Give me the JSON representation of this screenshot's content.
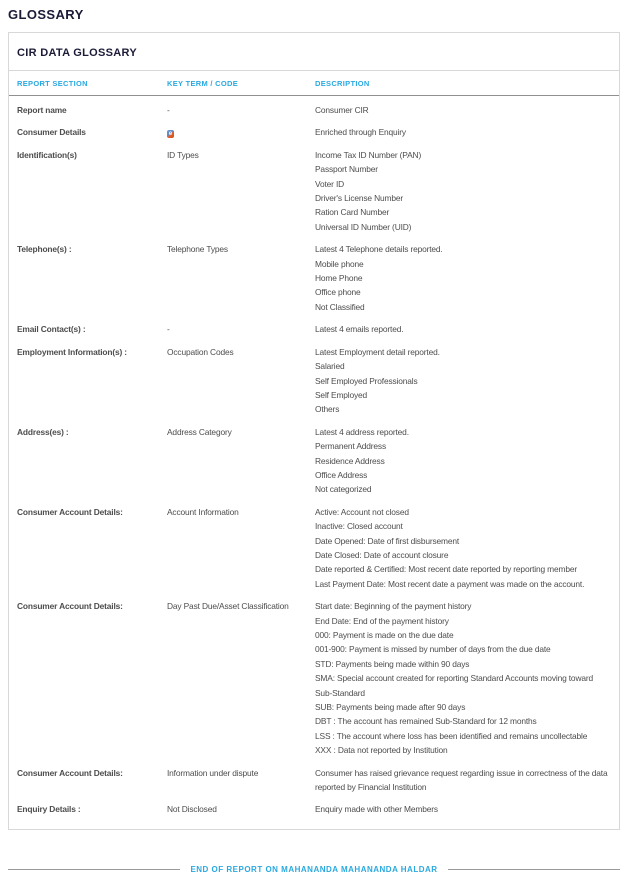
{
  "page": {
    "title": "GLOSSARY"
  },
  "glossary": {
    "box_title": "CIR DATA GLOSSARY",
    "columns": [
      "REPORT SECTION",
      "KEY TERM / CODE",
      "DESCRIPTION"
    ],
    "rows": [
      {
        "section": "Report name",
        "key_term": "-",
        "description": [
          "Consumer CIR"
        ]
      },
      {
        "section": "Consumer Details",
        "key_term": "e",
        "key_term_icon": "enriched-e-icon",
        "description": [
          "Enriched through Enquiry"
        ]
      },
      {
        "section": "Identification(s)",
        "key_term": "ID Types",
        "description": [
          "Income Tax ID Number (PAN)",
          "Passport Number",
          "Voter ID",
          "Driver's License Number",
          "Ration Card Number",
          "Universal ID Number (UID)"
        ]
      },
      {
        "section": "Telephone(s) :",
        "key_term": "Telephone Types",
        "description": [
          "Latest 4 Telephone details reported.",
          "Mobile phone",
          "Home Phone",
          "Office phone",
          "Not Classified"
        ]
      },
      {
        "section": "Email Contact(s) :",
        "key_term": "-",
        "description": [
          "Latest 4 emails reported."
        ]
      },
      {
        "section": "Employment Information(s) :",
        "key_term": "Occupation Codes",
        "description": [
          "Latest Employment detail reported.",
          "Salaried",
          "Self Employed Professionals",
          "Self Employed",
          "Others"
        ]
      },
      {
        "section": "Address(es) :",
        "key_term": "Address Category",
        "description": [
          "Latest 4 address reported.",
          "Permanent Address",
          "Residence Address",
          "Office Address",
          "Not categorized"
        ]
      },
      {
        "section": "Consumer Account Details:",
        "key_term": "Account Information",
        "description": [
          "Active: Account not closed",
          "Inactive: Closed account",
          "Date Opened: Date of first disbursement",
          "Date Closed: Date of account closure",
          "Date reported & Certified: Most recent date reported by reporting member",
          "Last Payment Date: Most recent date a payment was made on the account."
        ]
      },
      {
        "section": "Consumer Account Details:",
        "key_term": "Day Past Due/Asset Classification",
        "description": [
          "Start date: Beginning of the payment history",
          "End Date: End of the payment history",
          "000: Payment is made on the due date",
          "001-900: Payment is missed by number of days from the due date",
          "STD: Payments being made within 90 days",
          "SMA: Special account created for reporting Standard Accounts moving toward Sub-Standard",
          "SUB: Payments being made after 90 days",
          "DBT : The account has remained Sub-Standard for 12 months",
          "LSS : The account where loss has been identified and remains uncollectable",
          "XXX : Data not reported by Institution"
        ]
      },
      {
        "section": "Consumer Account Details:",
        "key_term": "Information under dispute",
        "description": [
          "Consumer has raised grievance request regarding issue in correctness of the data reported by Financial Institution"
        ]
      },
      {
        "section": "Enquiry Details :",
        "key_term": "Not Disclosed",
        "description": [
          "Enquiry made with other Members"
        ]
      }
    ]
  },
  "footer": {
    "end_text": "END OF REPORT ON MAHANANDA MAHANANDA HALDAR"
  },
  "colors": {
    "accent_cyan": "#29a9e0",
    "navy": "#1b1b38",
    "body_text": "#4d4d4d",
    "border_light": "#d8d8d8",
    "border_dark": "#909090"
  }
}
